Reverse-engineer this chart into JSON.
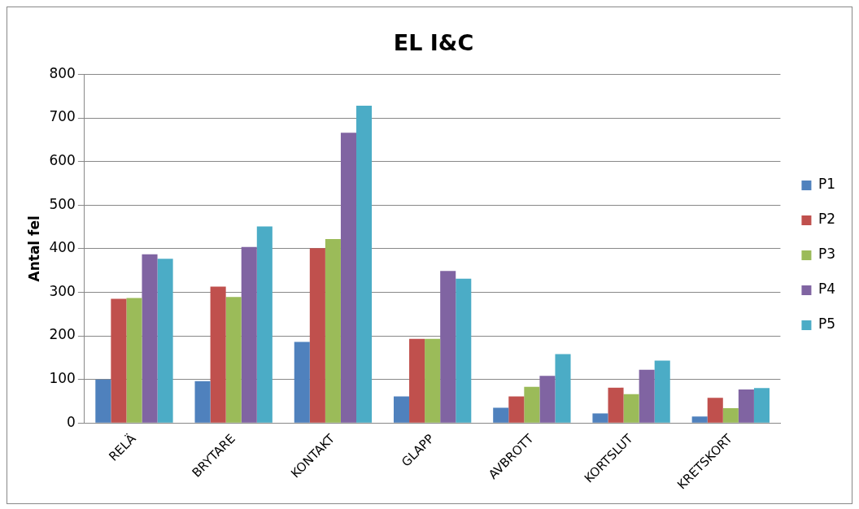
{
  "chart_data": {
    "type": "bar",
    "title": "EL I&C",
    "ylabel": "Antal fel",
    "categories": [
      "RELÄ",
      "BRYTARE",
      "KONTAKT",
      "GLAPP",
      "AVBROTT",
      "KORTSLUT",
      "KRETSKORT"
    ],
    "series": [
      {
        "name": "P1",
        "color": "#4f81bd",
        "values": [
          100,
          96,
          186,
          61,
          35,
          22,
          15
        ]
      },
      {
        "name": "P2",
        "color": "#c0504d",
        "values": [
          285,
          313,
          401,
          193,
          61,
          81,
          58
        ]
      },
      {
        "name": "P3",
        "color": "#9bbb59",
        "values": [
          287,
          289,
          422,
          193,
          83,
          66,
          34
        ]
      },
      {
        "name": "P4",
        "color": "#8064a2",
        "values": [
          387,
          404,
          666,
          349,
          108,
          122,
          77
        ]
      },
      {
        "name": "P5",
        "color": "#4bacc6",
        "values": [
          377,
          451,
          728,
          331,
          158,
          143,
          80
        ]
      }
    ],
    "ylim": [
      0,
      800
    ],
    "yticks": [
      0,
      100,
      200,
      300,
      400,
      500,
      600,
      700,
      800
    ],
    "grid": "y",
    "legend": "right"
  }
}
